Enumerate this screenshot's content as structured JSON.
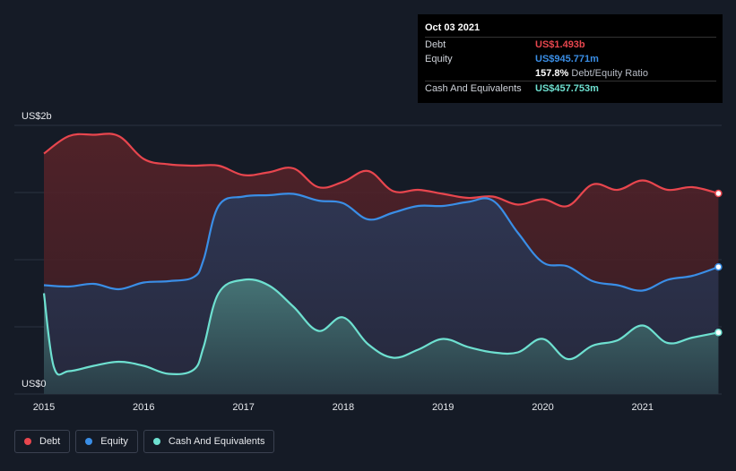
{
  "chart_data": {
    "type": "area",
    "x_ticks": [
      "2015",
      "2016",
      "2017",
      "2018",
      "2019",
      "2020",
      "2021"
    ],
    "y_top_label": "US$2b",
    "y_bottom_label": "US$0",
    "ylim": [
      0,
      2.0
    ],
    "grid": true,
    "legend_position": "bottom-left",
    "series": [
      {
        "name": "Debt",
        "color": "#e8464e",
        "x": [
          2015.0,
          2015.25,
          2015.5,
          2015.75,
          2016.0,
          2016.25,
          2016.5,
          2016.75,
          2017.0,
          2017.25,
          2017.5,
          2017.75,
          2018.0,
          2018.25,
          2018.5,
          2018.75,
          2019.0,
          2019.25,
          2019.5,
          2019.75,
          2020.0,
          2020.25,
          2020.5,
          2020.75,
          2021.0,
          2021.25,
          2021.5,
          2021.76
        ],
        "values": [
          1.79,
          1.92,
          1.93,
          1.92,
          1.75,
          1.71,
          1.7,
          1.7,
          1.63,
          1.65,
          1.68,
          1.54,
          1.58,
          1.66,
          1.51,
          1.52,
          1.49,
          1.46,
          1.47,
          1.41,
          1.45,
          1.4,
          1.56,
          1.52,
          1.59,
          1.52,
          1.54,
          1.493
        ]
      },
      {
        "name": "Equity",
        "color": "#3a8ee6",
        "x": [
          2015.0,
          2015.25,
          2015.5,
          2015.75,
          2016.0,
          2016.25,
          2016.5,
          2016.6,
          2016.75,
          2017.0,
          2017.25,
          2017.5,
          2017.75,
          2018.0,
          2018.25,
          2018.5,
          2018.75,
          2019.0,
          2019.25,
          2019.5,
          2019.75,
          2020.0,
          2020.25,
          2020.5,
          2020.75,
          2021.0,
          2021.25,
          2021.5,
          2021.76
        ],
        "values": [
          0.81,
          0.8,
          0.82,
          0.78,
          0.83,
          0.84,
          0.87,
          1.0,
          1.4,
          1.47,
          1.48,
          1.49,
          1.44,
          1.42,
          1.3,
          1.35,
          1.4,
          1.4,
          1.43,
          1.44,
          1.2,
          0.98,
          0.95,
          0.84,
          0.81,
          0.77,
          0.85,
          0.88,
          0.946
        ]
      },
      {
        "name": "Cash And Equivalents",
        "color": "#6ee0d0",
        "x": [
          2015.0,
          2015.1,
          2015.25,
          2015.5,
          2015.75,
          2016.0,
          2016.25,
          2016.5,
          2016.6,
          2016.75,
          2017.0,
          2017.25,
          2017.5,
          2017.75,
          2018.0,
          2018.25,
          2018.5,
          2018.75,
          2019.0,
          2019.25,
          2019.5,
          2019.75,
          2020.0,
          2020.25,
          2020.5,
          2020.75,
          2021.0,
          2021.25,
          2021.5,
          2021.76
        ],
        "values": [
          0.75,
          0.2,
          0.17,
          0.21,
          0.24,
          0.21,
          0.15,
          0.18,
          0.35,
          0.75,
          0.85,
          0.81,
          0.65,
          0.47,
          0.57,
          0.37,
          0.27,
          0.33,
          0.41,
          0.35,
          0.31,
          0.31,
          0.41,
          0.26,
          0.36,
          0.4,
          0.51,
          0.38,
          0.42,
          0.458
        ]
      }
    ]
  },
  "tooltip": {
    "date": "Oct 03 2021",
    "rows": [
      {
        "label": "Debt",
        "value": "US$1.493b",
        "color": "#e8464e"
      },
      {
        "label": "Equity",
        "value": "US$945.771m",
        "color": "#3a8ee6"
      },
      {
        "label": "",
        "value": "157.8%",
        "suffix": "Debt/Equity Ratio",
        "color": "#ffffff"
      },
      {
        "label": "Cash And Equivalents",
        "value": "US$457.753m",
        "color": "#6ee0d0"
      }
    ]
  },
  "legend": [
    {
      "label": "Debt",
      "color": "#e8464e"
    },
    {
      "label": "Equity",
      "color": "#3a8ee6"
    },
    {
      "label": "Cash And Equivalents",
      "color": "#6ee0d0"
    }
  ]
}
